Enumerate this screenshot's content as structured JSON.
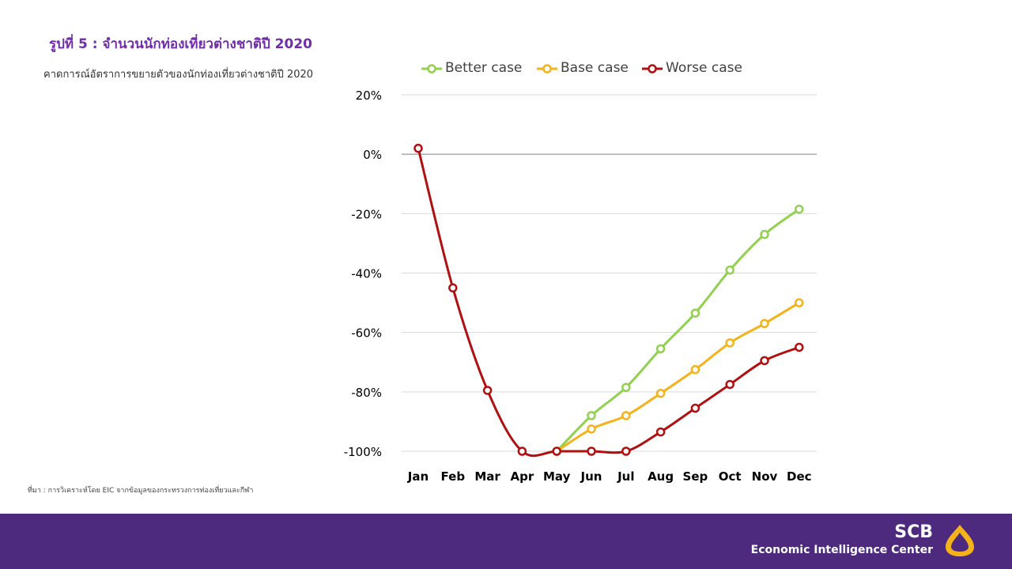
{
  "title": "รูปที่ 5 : จำนวนนักท่องเที่ยวต่างชาติปี 2020",
  "subtitle": "คาดการณ์อัตราการขยายตัวของนักท่องเที่ยวต่างชาติปี 2020",
  "source": "ที่มา : การวิเคราะห์โดย EIC จากข้อมูลของกระทรวงการท่องเที่ยวและกีฬา",
  "brand": {
    "name": "SCB",
    "sub": "Economic Intelligence Center"
  },
  "colors": {
    "better": "#92d050",
    "base": "#f5b31b",
    "worse": "#b01010",
    "footer": "#4e2a7e",
    "title": "#6f2da8",
    "logo": "#f5b31b"
  },
  "chart_data": {
    "type": "line",
    "title": "รูปที่ 5 : จำนวนนักท่องเที่ยวต่างชาติปี 2020",
    "xlabel": "",
    "ylabel": "",
    "ylim": [
      -100,
      20
    ],
    "yticks": [
      20,
      0,
      -20,
      -40,
      -60,
      -80,
      -100
    ],
    "ytick_labels": [
      "20%",
      "0%",
      "-20%",
      "-40%",
      "-60%",
      "-80%",
      "-100%"
    ],
    "categories": [
      "Jan",
      "Feb",
      "Mar",
      "Apr",
      "May",
      "Jun",
      "Jul",
      "Aug",
      "Sep",
      "Oct",
      "Nov",
      "Dec"
    ],
    "legend_position": "top",
    "series": [
      {
        "key": "better",
        "name": "Better case",
        "values": [
          null,
          null,
          null,
          null,
          -100,
          -88,
          -78.5,
          -65.5,
          -53.5,
          -39,
          -27,
          -18.5
        ]
      },
      {
        "key": "base",
        "name": "Base case",
        "values": [
          null,
          null,
          null,
          null,
          -100,
          -92.5,
          -88,
          -80.5,
          -72.5,
          -63.5,
          -57,
          -50
        ]
      },
      {
        "key": "worse",
        "name": "Worse case",
        "values": [
          2,
          -45,
          -79.5,
          -100,
          -100,
          -100,
          -100,
          -93.5,
          -85.5,
          -77.5,
          -69.5,
          -65
        ]
      }
    ]
  }
}
